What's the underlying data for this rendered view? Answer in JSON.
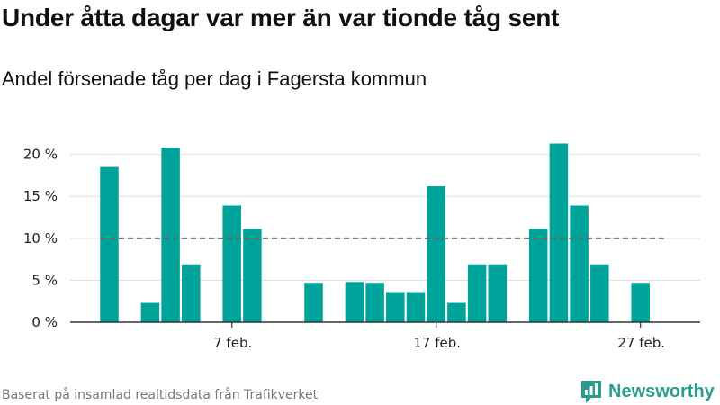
{
  "title": "Under åtta dagar var mer än var tionde tåg sent",
  "subtitle": "Andel försenade tåg per dag i Fagersta kommun",
  "footer": "Baserat på insamlad realtidsdata från Trafikverket",
  "brand": {
    "name": "Newsworthy",
    "icon": "newsworthy-logo-icon"
  },
  "colors": {
    "bar": "#00a39a",
    "reference_line": "#666666",
    "grid": "#dddddd",
    "axis": "#333333",
    "brand": "#2a9d8f"
  },
  "chart_data": {
    "type": "bar",
    "title": "Andel försenade tåg per dag i Fagersta kommun",
    "xlabel": "",
    "ylabel": "",
    "x": [
      1,
      2,
      3,
      4,
      5,
      6,
      7,
      8,
      9,
      10,
      11,
      12,
      13,
      14,
      15,
      16,
      17,
      18,
      19,
      20,
      21,
      22,
      23,
      24,
      25,
      26,
      27,
      28
    ],
    "values": [
      18.5,
      0,
      2.3,
      20.8,
      6.9,
      0,
      13.9,
      11.1,
      0,
      0,
      4.7,
      0,
      4.8,
      4.7,
      3.6,
      3.6,
      16.2,
      2.3,
      6.9,
      6.9,
      0,
      11.1,
      21.3,
      13.9,
      6.9,
      0,
      4.7,
      0
    ],
    "ylim": [
      0,
      22
    ],
    "yticks": [
      0,
      5,
      10,
      15,
      20
    ],
    "ytick_labels": [
      "0 %",
      "5 %",
      "10 %",
      "15 %",
      "20 %"
    ],
    "xticks": [
      7,
      17,
      27
    ],
    "xtick_labels": [
      "7 feb.",
      "17 feb.",
      "27 feb."
    ],
    "reference_line": {
      "value": 10,
      "style": "dashed"
    },
    "grid": true,
    "legend": "none"
  }
}
